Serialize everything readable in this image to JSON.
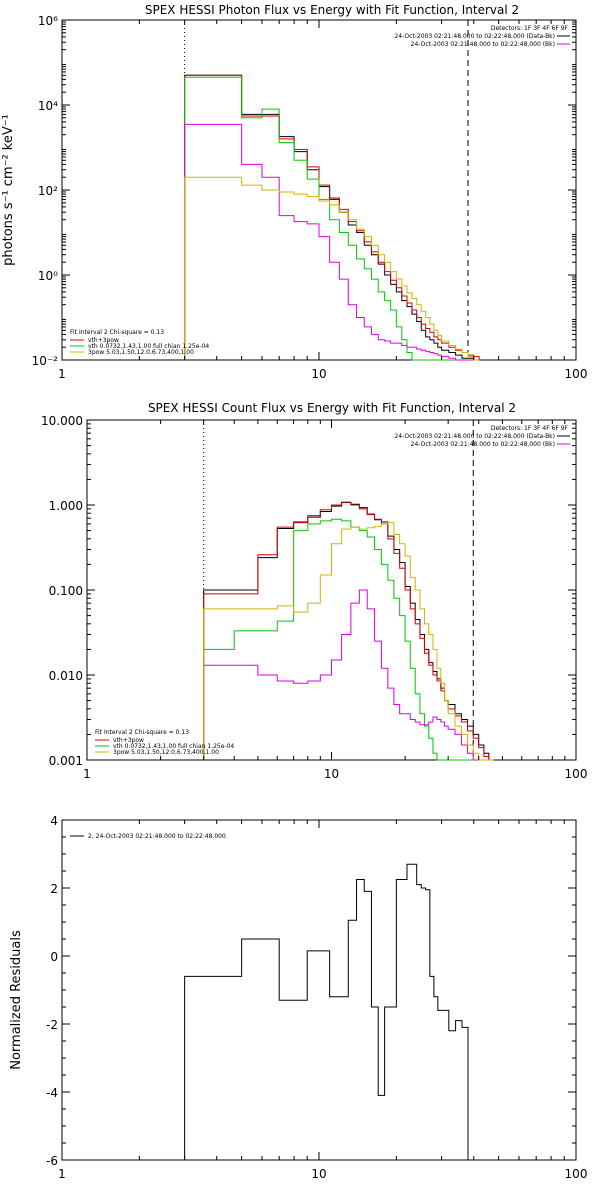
{
  "colors": {
    "black": "#000000",
    "red": "#d40000",
    "green": "#00c800",
    "magenta": "#dc00dc",
    "yellow": "#d2b400"
  },
  "chart_data": [
    {
      "type": "line",
      "title": "SPEX HESSI Photon Flux vs Energy with Fit Function, Interval 2",
      "ylabel": "photons s⁻¹ cm⁻² keV⁻¹",
      "xscale": "log",
      "yscale": "log",
      "xlim": [
        1,
        100
      ],
      "ylim": [
        0.01,
        1000000
      ],
      "xticks": [
        "1",
        "10",
        "100"
      ],
      "yticks": [
        "10⁻²",
        "10⁰",
        "10²",
        "10⁴",
        "10⁶"
      ],
      "vlines": {
        "dotted": 3,
        "dashed": 38
      },
      "legend_header": [
        "Detectors: 1F 3F 4F 6F 9F",
        "24-Oct-2003 02:21:48.000 to 02:22:48.000 (Data-Bk)",
        "24-Oct-2003 02:21:48.000 to 02:22:48.000 (Bk)"
      ],
      "fit_legend": [
        "Fit Interval 2   Chi-square = 0.13",
        "vth+3pow",
        "vth 0.0732,1.43,1.00  full chian 1.25e-04",
        "3pow 5.03,1.50,12.0,6.73,400,1.00"
      ],
      "edges": [
        3,
        4,
        5,
        6,
        7,
        8,
        9,
        10,
        11,
        12,
        13,
        14,
        15,
        16,
        17,
        18,
        19,
        20,
        21,
        22,
        23,
        24,
        25,
        26,
        27,
        28,
        29,
        30,
        32,
        34,
        36,
        38,
        40,
        42
      ],
      "series": [
        {
          "color": "black",
          "values": [
            50000,
            50000,
            6000,
            6000,
            1800,
            800,
            300,
            120,
            60,
            30,
            15,
            10,
            5,
            3,
            1.8,
            1,
            0.6,
            0.4,
            0.25,
            0.18,
            0.12,
            0.08,
            0.05,
            0.035,
            0.03,
            0.025,
            0.02,
            0.017,
            0.015,
            0.013,
            0.011,
            0.011,
            0.01
          ]
        },
        {
          "color": "red",
          "values": [
            50000,
            50000,
            5500,
            5500,
            1600,
            900,
            350,
            130,
            65,
            35,
            18,
            11,
            6,
            3.5,
            2,
            1.2,
            0.75,
            0.5,
            0.32,
            0.22,
            0.15,
            0.1,
            0.07,
            0.055,
            0.045,
            0.035,
            0.03,
            0.025,
            0.02,
            0.017,
            0.015,
            0.013,
            0.012
          ]
        },
        {
          "color": "green",
          "values": [
            45000,
            45000,
            5000,
            8000,
            1300,
            500,
            180,
            60,
            20,
            10,
            5,
            2.4,
            1.4,
            0.8,
            0.4,
            0.25,
            0.15,
            0.06,
            0.03,
            0.015,
            0.01,
            0.01,
            0.01,
            0.01,
            0.01,
            0.01,
            0.01,
            0.01,
            0.01,
            0.01,
            0.01,
            0.01,
            0.01
          ]
        },
        {
          "color": "magenta",
          "values": [
            3500,
            3500,
            400,
            200,
            25,
            18,
            16,
            8,
            2,
            0.8,
            0.2,
            0.1,
            0.06,
            0.04,
            0.03,
            0.028,
            0.025,
            0.025,
            0.022,
            0.02,
            0.02,
            0.018,
            0.017,
            0.016,
            0.015,
            0.014,
            0.013,
            0.012,
            0.011,
            0.01,
            0.01,
            0.01,
            0.01
          ]
        },
        {
          "color": "yellow",
          "values": [
            200,
            200,
            130,
            100,
            90,
            80,
            70,
            55,
            45,
            30,
            20,
            12,
            8,
            5,
            3,
            2,
            1.2,
            0.8,
            0.55,
            0.38,
            0.28,
            0.2,
            0.14,
            0.1,
            0.07,
            0.05,
            0.038,
            0.028,
            0.022,
            0.018,
            0.015,
            0.012,
            0.01
          ]
        }
      ]
    },
    {
      "type": "line",
      "title": "SPEX HESSI Count Flux vs Energy with Fit Function, Interval 2",
      "xscale": "log",
      "yscale": "log",
      "xlim": [
        1,
        100
      ],
      "ylim": [
        0.001,
        10
      ],
      "xticks": [
        "1",
        "10",
        "100"
      ],
      "yticks": [
        "0.001",
        "0.010",
        "0.100",
        "1.000",
        "10.000"
      ],
      "vlines": {
        "dotted": 3,
        "dashed": 38
      },
      "legend_header": [
        "Detectors: 1F 3F 4F 6F 9F",
        "24-Oct-2003 02:21:48.000 to 02:22:48.000 (Data-Bk)",
        "24-Oct-2003 02:21:48.000 to 02:22:48.000 (Bk)"
      ],
      "fit_legend": [
        "Fit Interval 2   Chi-square = 0.13",
        "vth+3pow",
        "vth 0.0732,1.43,1.00  full chian 1.25e-04",
        "3pow 5.03,1.50,12.0,6.73,400,1.00"
      ],
      "edges": [
        3,
        4,
        5,
        6,
        7,
        8,
        9,
        10,
        11,
        12,
        13,
        14,
        15,
        16,
        17,
        18,
        19,
        20,
        21,
        22,
        23,
        24,
        25,
        26,
        27,
        28,
        29,
        30,
        32,
        34,
        36,
        38,
        40,
        42,
        44,
        46
      ],
      "series": [
        {
          "color": "black",
          "values": [
            0.1,
            0.1,
            0.24,
            0.53,
            0.63,
            0.72,
            0.84,
            0.97,
            1.07,
            1.02,
            0.93,
            0.78,
            0.67,
            0.63,
            0.43,
            0.3,
            0.21,
            0.11,
            0.07,
            0.045,
            0.03,
            0.02,
            0.014,
            0.011,
            0.009,
            0.007,
            0.005,
            0.0045,
            0.0035,
            0.003,
            0.0025,
            0.002,
            0.0015,
            0.0012,
            0.001
          ]
        },
        {
          "color": "red",
          "values": [
            0.09,
            0.09,
            0.26,
            0.55,
            0.62,
            0.75,
            0.88,
            1.0,
            1.08,
            1.0,
            0.9,
            0.77,
            0.68,
            0.6,
            0.4,
            0.27,
            0.18,
            0.1,
            0.06,
            0.04,
            0.027,
            0.018,
            0.013,
            0.01,
            0.0085,
            0.0065,
            0.005,
            0.004,
            0.0033,
            0.0028,
            0.0022,
            0.0018,
            0.0014,
            0.0011,
            0.001
          ]
        },
        {
          "color": "green",
          "values": [
            0.02,
            0.033,
            0.033,
            0.043,
            0.5,
            0.6,
            0.65,
            0.68,
            0.65,
            0.55,
            0.5,
            0.42,
            0.3,
            0.2,
            0.13,
            0.08,
            0.05,
            0.025,
            0.012,
            0.006,
            0.0035,
            0.0025,
            0.0018,
            0.0012,
            0.001,
            0.001,
            0.001,
            0.001,
            0.001,
            0.001,
            0.001,
            0.001,
            0.001,
            0.001,
            0.001
          ]
        },
        {
          "color": "magenta",
          "values": [
            0.013,
            0.013,
            0.01,
            0.0085,
            0.008,
            0.0085,
            0.01,
            0.015,
            0.03,
            0.07,
            0.1,
            0.06,
            0.025,
            0.012,
            0.007,
            0.0045,
            0.0035,
            0.0035,
            0.003,
            0.0028,
            0.0026,
            0.0026,
            0.0028,
            0.0032,
            0.003,
            0.0028,
            0.0025,
            0.0023,
            0.002,
            0.0015,
            0.0012,
            0.001,
            0.001,
            0.001,
            0.001
          ]
        },
        {
          "color": "yellow",
          "values": [
            0.06,
            0.06,
            0.06,
            0.065,
            0.055,
            0.07,
            0.15,
            0.35,
            0.52,
            0.55,
            0.52,
            0.54,
            0.56,
            0.6,
            0.62,
            0.45,
            0.35,
            0.25,
            0.14,
            0.1,
            0.06,
            0.04,
            0.03,
            0.02,
            0.012,
            0.008,
            0.005,
            0.0035,
            0.0025,
            0.002,
            0.0015,
            0.0012,
            0.001,
            0.001,
            0.001
          ]
        }
      ]
    },
    {
      "type": "line",
      "ylabel": "Normalized Residuals",
      "xscale": "log",
      "xlim": [
        1,
        100
      ],
      "ylim": [
        -6,
        4
      ],
      "xticks": [
        "1",
        "10",
        "100"
      ],
      "yticks": [
        "-6",
        "-4",
        "-2",
        "0",
        "2",
        "4"
      ],
      "legend": [
        "2, 24-Oct-2003 02:21:48.000 to 02:22:48.000"
      ],
      "edges": [
        3,
        4,
        5,
        6,
        7,
        8,
        9,
        10,
        11,
        12,
        13,
        14,
        15,
        16,
        17,
        18,
        19,
        20,
        21,
        22,
        23,
        24,
        25,
        26,
        27,
        28,
        29,
        30,
        32,
        34,
        36,
        38
      ],
      "series": [
        {
          "color": "black",
          "values": [
            -0.6,
            -0.6,
            0.5,
            0.5,
            -1.3,
            -1.3,
            0.15,
            0.15,
            -1.2,
            -1.2,
            1.05,
            2.25,
            1.9,
            -1.5,
            -4.1,
            -1.5,
            -1.5,
            2.25,
            2.25,
            2.7,
            2.7,
            2.1,
            2.0,
            1.95,
            -0.6,
            -1.2,
            -1.6,
            -1.6,
            -2.2,
            -1.9,
            -2.1
          ]
        }
      ]
    }
  ]
}
